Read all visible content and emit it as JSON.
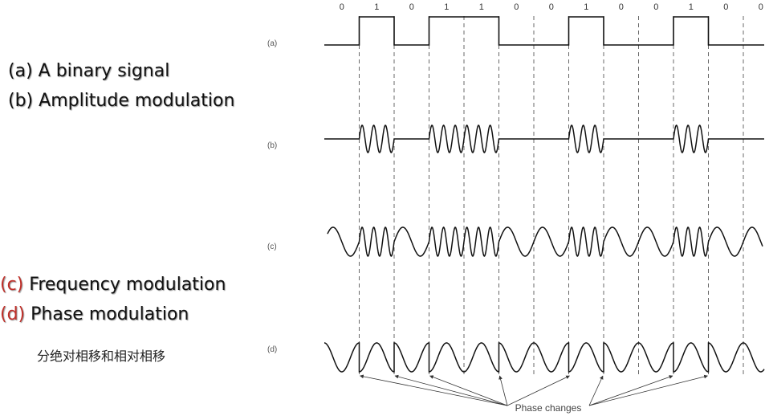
{
  "bits": [
    "0",
    "1",
    "0",
    "1",
    "1",
    "0",
    "0",
    "1",
    "0",
    "0",
    "1",
    "0",
    "0"
  ],
  "row_labels": [
    "(a)",
    "(b)",
    "(c)",
    "(d)"
  ],
  "legend": [
    {
      "key": "(a)",
      "text": "A binary signal",
      "key_color": "#111111"
    },
    {
      "key": "(b)",
      "text": "Amplitude modulation",
      "key_color": "#111111"
    },
    {
      "key": "(c)",
      "text": "Frequency modulation",
      "key_color": "#c0302a"
    },
    {
      "key": "(d)",
      "text": "Phase modulation",
      "key_color": "#c0302a"
    }
  ],
  "chinese_note": "分绝对相移和相对相移",
  "phase_changes_label": "Phase changes",
  "phase_change_bit_boundaries": [
    1,
    2,
    3,
    5,
    7,
    8,
    10,
    11
  ],
  "modulation": {
    "am_cycles_per_one_bit": 3,
    "fm_cycles_per_zero_bit": 1,
    "fm_cycles_per_one_bit": 3,
    "pm_cycles_per_bit": 1
  },
  "colors": {
    "ink": "#111111",
    "legend_key_red": "#c0302a",
    "label_gray": "#555555"
  }
}
